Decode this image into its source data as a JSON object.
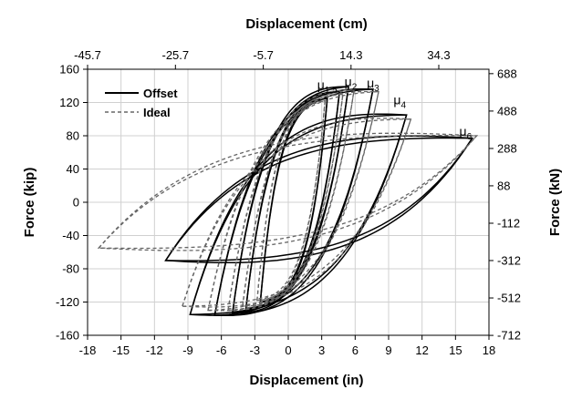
{
  "chart_data": {
    "type": "line",
    "title": "",
    "xlabel": "Displacement (in)",
    "ylabel": "Force (kip)",
    "x2label": "Displacement (cm)",
    "y2label": "Force (kN)",
    "xlim": [
      -18,
      18
    ],
    "ylim": [
      -160,
      160
    ],
    "xticks": [
      "-18",
      "-15",
      "-12",
      "-9",
      "-6",
      "-3",
      "0",
      "3",
      "6",
      "9",
      "12",
      "15",
      "18"
    ],
    "yticks": [
      "-160",
      "-120",
      "-80",
      "-40",
      "0",
      "40",
      "80",
      "120",
      "160"
    ],
    "x2ticks": [
      {
        "label": "-45.7",
        "at_in": -18
      },
      {
        "label": "-25.7",
        "at_in": -10.12
      },
      {
        "label": "-5.7",
        "at_in": -2.24
      },
      {
        "label": "14.3",
        "at_in": 5.63
      },
      {
        "label": "34.3",
        "at_in": 13.5
      }
    ],
    "y2ticks": [
      {
        "label": "688",
        "at_kip": 154.7
      },
      {
        "label": "488",
        "at_kip": 109.7
      },
      {
        "label": "288",
        "at_kip": 64.7
      },
      {
        "label": "88",
        "at_kip": 19.8
      },
      {
        "label": "-112",
        "at_kip": -25.2
      },
      {
        "label": "-312",
        "at_kip": -70.1
      },
      {
        "label": "-512",
        "at_kip": -115.1
      },
      {
        "label": "-712",
        "at_kip": -160.1
      }
    ],
    "legend": {
      "position": "top-left",
      "entries": [
        "Offset",
        "Ideal"
      ]
    },
    "grid": true,
    "series": [
      {
        "name": "Offset",
        "color": "#000000",
        "style": "solid",
        "cycles": [
          {
            "amp_pos": 3.5,
            "amp_neg": -2.5,
            "f_pos": 125,
            "f_neg": -120,
            "res": 45
          },
          {
            "amp_pos": 4.6,
            "amp_neg": -3.8,
            "f_pos": 133,
            "f_neg": -128,
            "res": 55
          },
          {
            "amp_pos": 5.4,
            "amp_neg": -5.0,
            "f_pos": 139,
            "f_neg": -133,
            "res": 65
          },
          {
            "amp_pos": 7.6,
            "amp_neg": -6.6,
            "f_pos": 136,
            "f_neg": -136,
            "res": 75
          },
          {
            "amp_pos": 10.6,
            "amp_neg": -8.8,
            "f_pos": 105,
            "f_neg": -135,
            "res": 85
          },
          {
            "amp_pos": 16.5,
            "amp_neg": -11.0,
            "f_pos": 77,
            "f_neg": -70,
            "res": 80
          }
        ]
      },
      {
        "name": "Ideal",
        "color": "#666666",
        "style": "dashed",
        "cycles": [
          {
            "amp_pos": 3.3,
            "amp_neg": -2.8,
            "f_pos": 122,
            "f_neg": -118,
            "res": 45
          },
          {
            "amp_pos": 4.9,
            "amp_neg": -4.1,
            "f_pos": 130,
            "f_neg": -125,
            "res": 55
          },
          {
            "amp_pos": 5.9,
            "amp_neg": -5.4,
            "f_pos": 135,
            "f_neg": -130,
            "res": 62
          },
          {
            "amp_pos": 8.1,
            "amp_neg": -7.2,
            "f_pos": 133,
            "f_neg": -130,
            "res": 70
          },
          {
            "amp_pos": 11.0,
            "amp_neg": -9.5,
            "f_pos": 100,
            "f_neg": -125,
            "res": 80
          },
          {
            "amp_pos": 16.9,
            "amp_neg": -17.0,
            "f_pos": 80,
            "f_neg": -55,
            "res": 80
          }
        ]
      }
    ],
    "annotations": [
      {
        "base": "μ",
        "sub": "1.5",
        "x": 3.5,
        "y": 136
      },
      {
        "base": "μ",
        "sub": "2",
        "x": 5.6,
        "y": 140
      },
      {
        "base": "μ",
        "sub": "3",
        "x": 7.6,
        "y": 138
      },
      {
        "base": "μ",
        "sub": "4",
        "x": 10.0,
        "y": 118
      },
      {
        "base": "μ",
        "sub": "6",
        "x": 15.9,
        "y": 80
      }
    ]
  }
}
